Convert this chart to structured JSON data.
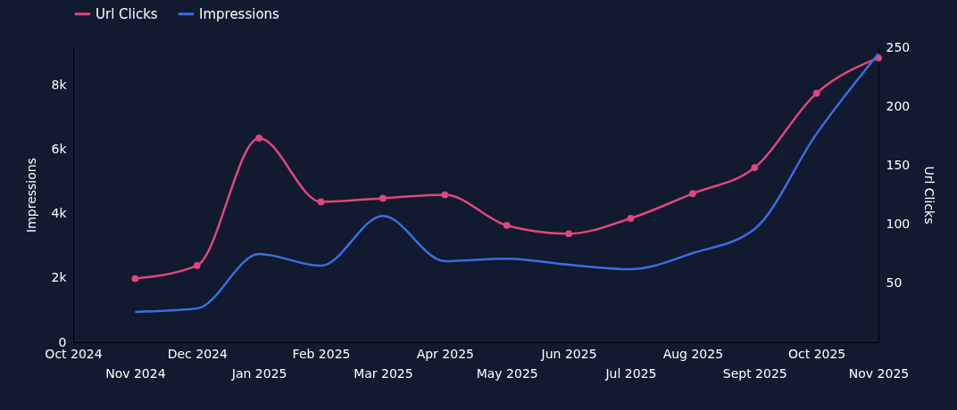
{
  "chart_data": {
    "type": "line",
    "categories": [
      "Oct 2024",
      "Nov 2024",
      "Dec 2024",
      "Jan 2025",
      "Feb 2025",
      "Mar 2025",
      "Apr 2025",
      "May 2025",
      "Jun 2025",
      "Jul 2025",
      "Aug 2025",
      "Sept 2025",
      "Oct 2025",
      "Nov 2025"
    ],
    "series": [
      {
        "name": "Url Clicks",
        "color": "#e0467c",
        "axis": "y2",
        "marker": "circle",
        "values": [
          null,
          54,
          65,
          173,
          119,
          122,
          125,
          99,
          92,
          105,
          126,
          148,
          211,
          241
        ]
      },
      {
        "name": "Impressions",
        "color": "#3a6ee0",
        "marker": "none",
        "values": [
          null,
          940,
          1050,
          2740,
          2380,
          3930,
          2520,
          2600,
          2410,
          2270,
          2770,
          3520,
          6480,
          8970
        ]
      }
    ],
    "ylabel": "Impressions",
    "y2label": "Url Clicks",
    "ylim": [
      0,
      9170
    ],
    "yticks": [
      0,
      {
        "value": 2000,
        "label": "2k"
      },
      {
        "value": 4000,
        "label": "4k"
      },
      {
        "value": 6000,
        "label": "6k"
      },
      {
        "value": 8000,
        "label": "8k"
      }
    ],
    "y2lim": [
      0,
      250
    ],
    "y2ticks": [
      50,
      100,
      150,
      200,
      250
    ],
    "legend": "top left",
    "grid": false
  }
}
